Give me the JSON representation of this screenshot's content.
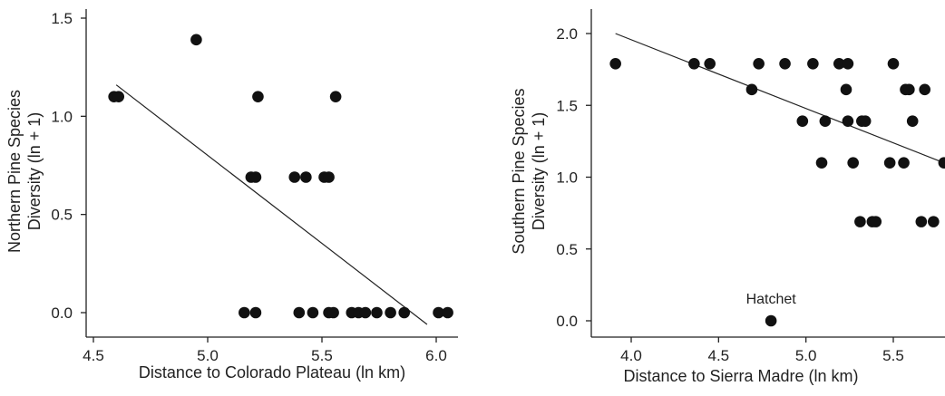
{
  "chart_data": [
    {
      "type": "scatter",
      "xlabel": "Distance to Colorado Plateau (ln km)",
      "ylabel_lines": [
        "Northern Pine Species",
        "Diversity (ln + 1)"
      ],
      "xlim": [
        4.5,
        6.1
      ],
      "ylim": [
        -0.1,
        1.55
      ],
      "xticks": [
        {
          "v": 4.5,
          "label": "4.5"
        },
        {
          "v": 5.0,
          "label": "5.0"
        },
        {
          "v": 5.5,
          "label": "5.5"
        },
        {
          "v": 6.0,
          "label": "6.0"
        }
      ],
      "yticks": [
        {
          "v": 0.0,
          "label": "0.0"
        },
        {
          "v": 0.5,
          "label": "0.5"
        },
        {
          "v": 1.0,
          "label": "1.0"
        },
        {
          "v": 1.5,
          "label": "1.5"
        }
      ],
      "points": [
        {
          "x": 4.59,
          "y": 1.1
        },
        {
          "x": 4.61,
          "y": 1.1
        },
        {
          "x": 4.95,
          "y": 1.39
        },
        {
          "x": 5.16,
          "y": 0.0
        },
        {
          "x": 5.21,
          "y": 0.0
        },
        {
          "x": 5.19,
          "y": 0.69
        },
        {
          "x": 5.21,
          "y": 0.69
        },
        {
          "x": 5.22,
          "y": 1.1
        },
        {
          "x": 5.38,
          "y": 0.69
        },
        {
          "x": 5.43,
          "y": 0.69
        },
        {
          "x": 5.51,
          "y": 0.69
        },
        {
          "x": 5.53,
          "y": 0.69
        },
        {
          "x": 5.56,
          "y": 1.1
        },
        {
          "x": 5.4,
          "y": 0.0
        },
        {
          "x": 5.46,
          "y": 0.0
        },
        {
          "x": 5.53,
          "y": 0.0
        },
        {
          "x": 5.55,
          "y": 0.0
        },
        {
          "x": 5.63,
          "y": 0.0
        },
        {
          "x": 5.66,
          "y": 0.0
        },
        {
          "x": 5.69,
          "y": 0.0
        },
        {
          "x": 5.74,
          "y": 0.0
        },
        {
          "x": 5.8,
          "y": 0.0
        },
        {
          "x": 5.86,
          "y": 0.0
        },
        {
          "x": 6.01,
          "y": 0.0
        },
        {
          "x": 6.05,
          "y": 0.0
        }
      ],
      "trendline": {
        "x": [
          4.6,
          5.96
        ],
        "y": [
          1.16,
          -0.06
        ]
      }
    },
    {
      "type": "scatter",
      "xlabel": "Distance to Sierra Madre (ln km)",
      "ylabel_lines": [
        "Southern Pine Species",
        "Diversity (ln + 1)"
      ],
      "xlim": [
        3.8,
        5.8
      ],
      "ylim": [
        -0.05,
        2.15
      ],
      "xticks": [
        {
          "v": 4.0,
          "label": "4.0"
        },
        {
          "v": 4.5,
          "label": "4.5"
        },
        {
          "v": 5.0,
          "label": "5.0"
        },
        {
          "v": 5.5,
          "label": "5.5"
        }
      ],
      "yticks": [
        {
          "v": 0.0,
          "label": "0.0"
        },
        {
          "v": 0.5,
          "label": "0.5"
        },
        {
          "v": 1.0,
          "label": "1.0"
        },
        {
          "v": 1.5,
          "label": "1.5"
        },
        {
          "v": 2.0,
          "label": "2.0"
        }
      ],
      "points": [
        {
          "x": 3.91,
          "y": 1.79
        },
        {
          "x": 4.36,
          "y": 1.79
        },
        {
          "x": 4.45,
          "y": 1.79
        },
        {
          "x": 4.69,
          "y": 1.61
        },
        {
          "x": 4.73,
          "y": 1.79
        },
        {
          "x": 4.88,
          "y": 1.79
        },
        {
          "x": 5.04,
          "y": 1.79
        },
        {
          "x": 5.19,
          "y": 1.79
        },
        {
          "x": 5.24,
          "y": 1.79
        },
        {
          "x": 5.5,
          "y": 1.79
        },
        {
          "x": 5.23,
          "y": 1.61
        },
        {
          "x": 5.57,
          "y": 1.61
        },
        {
          "x": 5.59,
          "y": 1.61
        },
        {
          "x": 5.68,
          "y": 1.61
        },
        {
          "x": 4.98,
          "y": 1.39
        },
        {
          "x": 5.11,
          "y": 1.39
        },
        {
          "x": 5.24,
          "y": 1.39
        },
        {
          "x": 5.32,
          "y": 1.39
        },
        {
          "x": 5.34,
          "y": 1.39
        },
        {
          "x": 5.61,
          "y": 1.39
        },
        {
          "x": 5.09,
          "y": 1.1
        },
        {
          "x": 5.27,
          "y": 1.1
        },
        {
          "x": 5.48,
          "y": 1.1
        },
        {
          "x": 5.56,
          "y": 1.1
        },
        {
          "x": 5.79,
          "y": 1.1
        },
        {
          "x": 5.31,
          "y": 0.69
        },
        {
          "x": 5.38,
          "y": 0.69
        },
        {
          "x": 5.4,
          "y": 0.69
        },
        {
          "x": 5.66,
          "y": 0.69
        },
        {
          "x": 5.73,
          "y": 0.69
        },
        {
          "x": 4.8,
          "y": 0.0
        }
      ],
      "annotation": {
        "text": "Hatchet",
        "x": 4.8,
        "y": 0.0
      },
      "trendline": {
        "x": [
          3.91,
          5.79
        ],
        "y": [
          2.0,
          1.1
        ]
      }
    }
  ]
}
